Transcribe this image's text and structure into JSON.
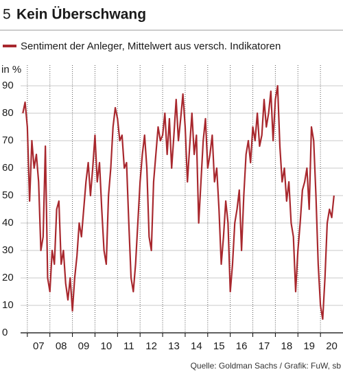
{
  "chart_data": {
    "type": "line",
    "number": "5",
    "title": "Kein Überschwang",
    "y_label": "in %",
    "source": "Quelle: Goldman Sachs / Grafik: FuW, sb",
    "xlim": [
      2006.7,
      2021
    ],
    "ylim": [
      0,
      90
    ],
    "yticks": [
      0,
      10,
      20,
      30,
      40,
      50,
      60,
      70,
      80,
      90
    ],
    "xticks": [
      {
        "value": 2007,
        "label": "07"
      },
      {
        "value": 2008,
        "label": "08"
      },
      {
        "value": 2009,
        "label": "09"
      },
      {
        "value": 2010,
        "label": "10"
      },
      {
        "value": 2011,
        "label": "11"
      },
      {
        "value": 2012,
        "label": "12"
      },
      {
        "value": 2013,
        "label": "13"
      },
      {
        "value": 2014,
        "label": "14"
      },
      {
        "value": 2015,
        "label": "15"
      },
      {
        "value": 2016,
        "label": "16"
      },
      {
        "value": 2017,
        "label": "17"
      },
      {
        "value": 2018,
        "label": "18"
      },
      {
        "value": 2019,
        "label": "19"
      },
      {
        "value": 2020,
        "label": "20"
      }
    ],
    "grid": true,
    "x": [
      2006.8,
      2006.9,
      2007.0,
      2007.1,
      2007.2,
      2007.3,
      2007.4,
      2007.5,
      2007.6,
      2007.7,
      2007.8,
      2007.9,
      2008.0,
      2008.1,
      2008.2,
      2008.3,
      2008.4,
      2008.5,
      2008.6,
      2008.7,
      2008.8,
      2008.9,
      2009.0,
      2009.1,
      2009.2,
      2009.3,
      2009.4,
      2009.5,
      2009.6,
      2009.7,
      2009.8,
      2009.9,
      2010.0,
      2010.1,
      2010.2,
      2010.3,
      2010.4,
      2010.5,
      2010.6,
      2010.7,
      2010.8,
      2010.9,
      2011.0,
      2011.1,
      2011.2,
      2011.3,
      2011.4,
      2011.5,
      2011.6,
      2011.7,
      2011.8,
      2011.9,
      2012.0,
      2012.1,
      2012.2,
      2012.3,
      2012.4,
      2012.5,
      2012.6,
      2012.7,
      2012.8,
      2012.9,
      2013.0,
      2013.1,
      2013.2,
      2013.3,
      2013.4,
      2013.5,
      2013.6,
      2013.7,
      2013.8,
      2013.9,
      2014.0,
      2014.1,
      2014.2,
      2014.3,
      2014.4,
      2014.5,
      2014.6,
      2014.7,
      2014.8,
      2014.9,
      2015.0,
      2015.1,
      2015.2,
      2015.3,
      2015.4,
      2015.5,
      2015.6,
      2015.7,
      2015.8,
      2015.9,
      2016.0,
      2016.1,
      2016.2,
      2016.3,
      2016.4,
      2016.5,
      2016.6,
      2016.7,
      2016.8,
      2016.9,
      2017.0,
      2017.1,
      2017.2,
      2017.3,
      2017.4,
      2017.5,
      2017.6,
      2017.7,
      2017.8,
      2017.9,
      2018.0,
      2018.1,
      2018.2,
      2018.3,
      2018.4,
      2018.5,
      2018.6,
      2018.7,
      2018.8,
      2018.9,
      2019.0,
      2019.1,
      2019.2,
      2019.3,
      2019.4,
      2019.5,
      2019.6,
      2019.7,
      2019.8,
      2019.9,
      2020.0,
      2020.1,
      2020.2,
      2020.3,
      2020.4,
      2020.5,
      2020.6
    ],
    "series": [
      {
        "name": "Sentiment der Anleger, Mittelwert aus versch. Indikatoren",
        "color": "#a8282e",
        "values": [
          80,
          84,
          75,
          48,
          70,
          60,
          65,
          55,
          30,
          35,
          68,
          20,
          15,
          30,
          25,
          45,
          48,
          25,
          30,
          18,
          12,
          20,
          8,
          20,
          28,
          40,
          35,
          45,
          55,
          62,
          50,
          60,
          72,
          55,
          62,
          45,
          30,
          25,
          50,
          60,
          75,
          82,
          78,
          70,
          72,
          60,
          62,
          40,
          20,
          15,
          25,
          40,
          55,
          65,
          72,
          60,
          35,
          30,
          55,
          65,
          75,
          70,
          72,
          80,
          65,
          78,
          60,
          72,
          85,
          70,
          78,
          87,
          75,
          55,
          68,
          80,
          65,
          72,
          40,
          55,
          70,
          78,
          60,
          65,
          72,
          55,
          60,
          45,
          25,
          35,
          48,
          40,
          15,
          25,
          40,
          45,
          52,
          30,
          50,
          65,
          70,
          62,
          75,
          70,
          80,
          68,
          72,
          85,
          75,
          80,
          88,
          70,
          85,
          90,
          68,
          55,
          60,
          48,
          55,
          40,
          35,
          15,
          30,
          40,
          52,
          55,
          60,
          45,
          75,
          70,
          50,
          25,
          10,
          5,
          20,
          40,
          45,
          42,
          50
        ]
      }
    ]
  }
}
